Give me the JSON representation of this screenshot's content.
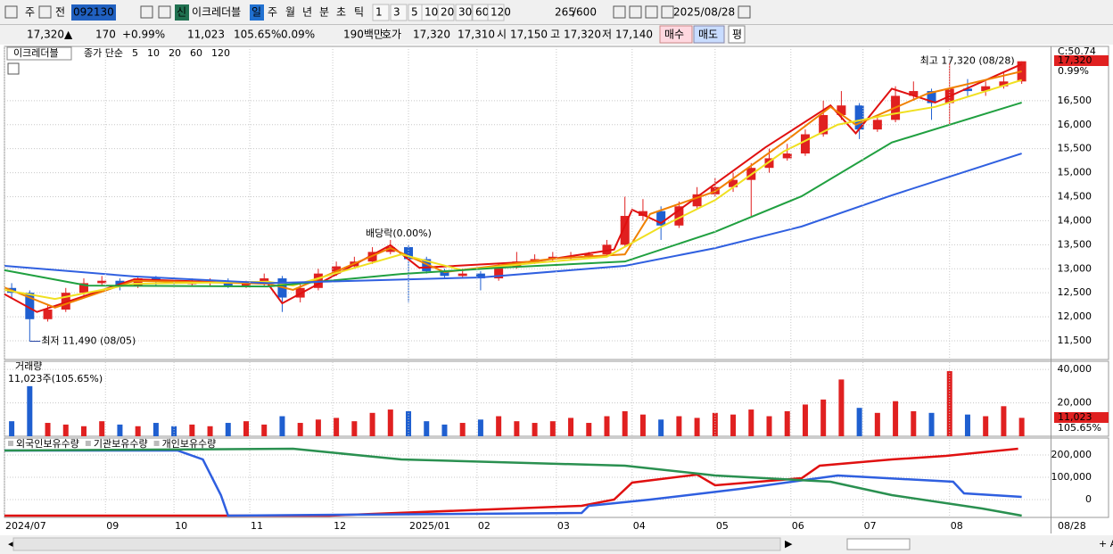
{
  "toolbar": [
    "주",
    "전",
    "092130",
    "신",
    "이크레더블",
    "일",
    "주",
    "월",
    "년",
    "분",
    "초",
    "틱",
    "1",
    "3",
    "5",
    "10",
    "20",
    "30",
    "60",
    "120",
    "265",
    "/600",
    "2025/08/28"
  ],
  "info": [
    "17,320",
    "▲",
    "170",
    "+0.99%",
    "11,023",
    "105.65%",
    "0.09%",
    "190백만",
    "호가",
    "17,320",
    "17,310",
    "시",
    "17,150",
    "고",
    "17,320",
    "저",
    "17,140",
    "매수",
    "매도",
    "평"
  ],
  "chart_data": [
    {
      "type": "candlestick",
      "name": "이크레더블",
      "legend_prefix": "종가 단순",
      "up_color": "#e02020",
      "down_color": "#1f5fd0",
      "x": [
        2,
        7,
        12,
        17,
        22,
        27,
        32,
        37,
        42,
        47,
        52,
        57,
        62,
        67,
        72,
        77,
        82,
        87,
        92,
        97,
        102,
        107,
        112,
        117,
        122,
        127,
        132,
        137,
        142,
        147,
        152,
        157,
        162,
        167,
        172,
        177,
        182,
        187,
        192,
        197,
        202,
        207,
        212,
        217,
        222,
        227,
        232,
        237,
        242,
        247,
        252,
        257,
        262,
        267,
        272,
        277,
        282
      ],
      "ohlc": [
        [
          12600,
          12700,
          12400,
          12500
        ],
        [
          12500,
          12550,
          11490,
          11950
        ],
        [
          11950,
          12250,
          11900,
          12150
        ],
        [
          12150,
          12600,
          12100,
          12500
        ],
        [
          12500,
          12800,
          12450,
          12700
        ],
        [
          12700,
          12850,
          12650,
          12750
        ],
        [
          12750,
          12800,
          12550,
          12650
        ],
        [
          12650,
          12850,
          12600,
          12800
        ],
        [
          12800,
          12850,
          12650,
          12750
        ],
        [
          12750,
          12800,
          12650,
          12700
        ],
        [
          12700,
          12800,
          12650,
          12700
        ],
        [
          12700,
          12800,
          12650,
          12750
        ],
        [
          12750,
          12800,
          12600,
          12650
        ],
        [
          12650,
          12750,
          12600,
          12700
        ],
        [
          12700,
          12900,
          12650,
          12800
        ],
        [
          12800,
          12850,
          12100,
          12400
        ],
        [
          12400,
          12700,
          12300,
          12600
        ],
        [
          12600,
          13000,
          12550,
          12900
        ],
        [
          12900,
          13150,
          12850,
          13050
        ],
        [
          13050,
          13250,
          13000,
          13150
        ],
        [
          13150,
          13450,
          13100,
          13350
        ],
        [
          13350,
          13600,
          13300,
          13450
        ],
        [
          13450,
          13500,
          12300,
          13200
        ],
        [
          13200,
          13250,
          12900,
          12950
        ],
        [
          12950,
          13000,
          12800,
          12850
        ],
        [
          12850,
          13000,
          12800,
          12900
        ],
        [
          12900,
          12950,
          12550,
          12800
        ],
        [
          12800,
          13100,
          12750,
          13050
        ],
        [
          13050,
          13350,
          13000,
          13150
        ],
        [
          13150,
          13300,
          13100,
          13200
        ],
        [
          13200,
          13350,
          13150,
          13250
        ],
        [
          13250,
          13350,
          13200,
          13250
        ],
        [
          13250,
          13350,
          13200,
          13300
        ],
        [
          13300,
          13600,
          13250,
          13500
        ],
        [
          13500,
          14500,
          13450,
          14100
        ],
        [
          14100,
          14450,
          14000,
          14200
        ],
        [
          14200,
          14300,
          13600,
          13900
        ],
        [
          13900,
          14400,
          13850,
          14300
        ],
        [
          14300,
          14700,
          14250,
          14550
        ],
        [
          14550,
          14900,
          14500,
          14700
        ],
        [
          14700,
          15000,
          14600,
          14850
        ],
        [
          14850,
          15200,
          14100,
          15100
        ],
        [
          15100,
          15500,
          15000,
          15300
        ],
        [
          15300,
          15600,
          15250,
          15400
        ],
        [
          15400,
          15900,
          15350,
          15800
        ],
        [
          15800,
          16500,
          15750,
          16200
        ],
        [
          16200,
          16700,
          16100,
          16400
        ],
        [
          16400,
          16450,
          15700,
          15900
        ],
        [
          15900,
          16200,
          15850,
          16100
        ],
        [
          16100,
          16800,
          16050,
          16600
        ],
        [
          16600,
          16900,
          16500,
          16700
        ],
        [
          16700,
          16750,
          16100,
          16450
        ],
        [
          16450,
          17300,
          16000,
          16750
        ],
        [
          16750,
          16950,
          16600,
          16700
        ],
        [
          16700,
          16900,
          16600,
          16800
        ],
        [
          16800,
          17100,
          16750,
          16900
        ],
        [
          16900,
          17320,
          16850,
          17320
        ]
      ],
      "ma": [
        {
          "name": "5",
          "color": "#e01010",
          "x": [
            0,
            9,
            36,
            73,
            77,
            107,
            115,
            147,
            169,
            174,
            182,
            211,
            229,
            236,
            246,
            258,
            282
          ],
          "values": [
            12470,
            12100,
            12780,
            12690,
            12280,
            13490,
            13020,
            13150,
            13400,
            14230,
            13950,
            15530,
            16400,
            15820,
            16750,
            16460,
            17260
          ]
        },
        {
          "name": "10",
          "color": "#f08000",
          "x": [
            0,
            14,
            36,
            73,
            80,
            107,
            122,
            152,
            172,
            179,
            197,
            216,
            229,
            236,
            256,
            282
          ],
          "values": [
            12610,
            12190,
            12750,
            12690,
            12560,
            13430,
            12930,
            13210,
            13300,
            14140,
            14610,
            15630,
            16370,
            16000,
            16650,
            17110
          ]
        },
        {
          "name": "20",
          "color": "#f0e020",
          "x": [
            0,
            14,
            36,
            73,
            80,
            110,
            127,
            147,
            167,
            182,
            197,
            216,
            231,
            246,
            258,
            282
          ],
          "values": [
            12560,
            12370,
            12690,
            12730,
            12650,
            13300,
            12970,
            13120,
            13250,
            13870,
            14430,
            15440,
            16000,
            16220,
            16370,
            16930
          ]
        },
        {
          "name": "60",
          "color": "#20a040",
          "x": [
            0,
            23,
            73,
            110,
            137,
            172,
            197,
            221,
            246,
            282
          ],
          "values": [
            12970,
            12650,
            12630,
            12890,
            13020,
            13150,
            13770,
            14510,
            15630,
            16460
          ]
        },
        {
          "name": "120",
          "color": "#3060e0",
          "x": [
            0,
            36,
            73,
            132,
            172,
            197,
            221,
            246,
            282
          ],
          "values": [
            13060,
            12840,
            12700,
            12820,
            13060,
            13430,
            13880,
            14530,
            15400
          ]
        }
      ],
      "xlim": [
        0,
        290
      ],
      "ylim": [
        11110,
        17630
      ],
      "yticks": [
        {
          "value": 11500,
          "label": "11,500"
        },
        {
          "value": 12000,
          "label": "12,000"
        },
        {
          "value": 12500,
          "label": "12,500"
        },
        {
          "value": 13000,
          "label": "13,000"
        },
        {
          "value": 13500,
          "label": "13,500"
        },
        {
          "value": 14000,
          "label": "14,000"
        },
        {
          "value": 14500,
          "label": "14,500"
        },
        {
          "value": 15000,
          "label": "15,000"
        },
        {
          "value": 15500,
          "label": "15,500"
        },
        {
          "value": 16000,
          "label": "16,000"
        },
        {
          "value": 16500,
          "label": "16,500"
        }
      ],
      "high_label": "최고 17,320 (08/28)",
      "low_label": "최저 11,490 (08/05)",
      "dividend_label": "배당락(0.00%)",
      "corner_label": "C:50.74",
      "last_price_label": "17,320",
      "last_change_label": "0.99%"
    },
    {
      "type": "bar",
      "title": "거래량",
      "subtitle": "11,023주(105.65%)",
      "values": [
        9000,
        30000,
        8000,
        7000,
        6000,
        9000,
        7000,
        6000,
        8000,
        6000,
        7000,
        6000,
        8000,
        9000,
        7000,
        12000,
        8000,
        10000,
        11000,
        9000,
        14000,
        16000,
        15000,
        9000,
        7000,
        8000,
        10000,
        12000,
        9000,
        8000,
        9000,
        11000,
        8000,
        12000,
        15000,
        13000,
        10000,
        12000,
        11000,
        14000,
        13000,
        16000,
        12000,
        15000,
        19000,
        22000,
        34000,
        17000,
        14000,
        21000,
        15000,
        14000,
        39000,
        13000,
        12000,
        18000,
        11023
      ],
      "xlim": [
        0,
        290
      ],
      "ylim": [
        0,
        44900
      ],
      "yticks": [
        {
          "value": 20000,
          "label": "20,000"
        },
        {
          "value": 40000,
          "label": "40,000"
        }
      ],
      "last_label": "11,023",
      "last_ratio_label": "105.65%"
    },
    {
      "type": "line",
      "series": [
        {
          "name": "외국인보유수량",
          "color": "#e01010",
          "x": [
            0,
            90,
            160,
            169,
            174,
            192,
            197,
            221,
            226,
            246,
            261,
            281
          ],
          "values": [
            -72000,
            -72000,
            -28000,
            0,
            76000,
            112000,
            64000,
            96000,
            152000,
            180000,
            196000,
            228000
          ]
        },
        {
          "name": "기관보유수량",
          "color": "#2f5fe0",
          "x": [
            0,
            48,
            55,
            60,
            62,
            160,
            162,
            179,
            204,
            231,
            263,
            266,
            282
          ],
          "values": [
            220000,
            220000,
            180000,
            20000,
            -72000,
            -60000,
            -28000,
            0,
            48000,
            108000,
            80000,
            28000,
            12000
          ]
        },
        {
          "name": "개인보유수량",
          "color": "#2a9050",
          "x": [
            0,
            80,
            110,
            172,
            197,
            229,
            246,
            271,
            282
          ],
          "values": [
            220000,
            228000,
            180000,
            152000,
            108000,
            80000,
            20000,
            -40000,
            -72000
          ]
        }
      ],
      "xlim": [
        0,
        290
      ],
      "ylim": [
        -80000,
        276000
      ],
      "yticks": [
        0,
        {
          "value": 100000,
          "label": "100,000"
        },
        {
          "value": 200000,
          "label": "200,000"
        }
      ],
      "xticks": [
        {
          "value": 0,
          "label": "2024/07"
        },
        {
          "value": 28,
          "label": "09"
        },
        {
          "value": 47,
          "label": "10"
        },
        {
          "value": 68,
          "label": "11"
        },
        {
          "value": 91,
          "label": "12"
        },
        {
          "value": 112,
          "label": "2025/01"
        },
        {
          "value": 131,
          "label": "02"
        },
        {
          "value": 153,
          "label": "03"
        },
        {
          "value": 174,
          "label": "04"
        },
        {
          "value": 197,
          "label": "05"
        },
        {
          "value": 218,
          "label": "06"
        },
        {
          "value": 238,
          "label": "07"
        },
        {
          "value": 262,
          "label": "08"
        }
      ],
      "x_end_label": "08/28"
    }
  ]
}
